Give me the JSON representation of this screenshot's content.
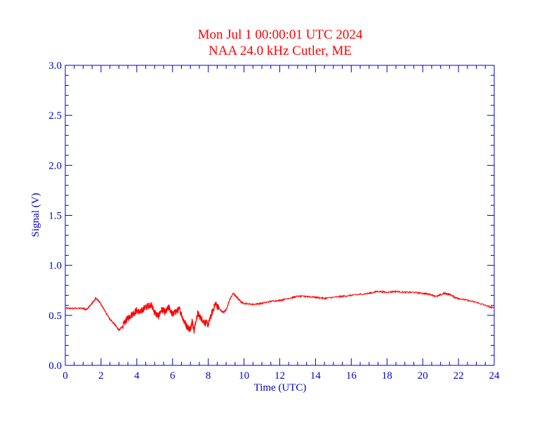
{
  "chart_data": {
    "type": "line",
    "title": "Mon Jul 1 00:00:01 UTC 2024",
    "subtitle": "NAA 24.0 kHz Cutler, ME",
    "xlabel": "Time (UTC)",
    "ylabel": "Signal (V)",
    "xlim": [
      0,
      24
    ],
    "ylim": [
      0,
      3.0
    ],
    "x_ticks": [
      0,
      2,
      4,
      6,
      8,
      10,
      12,
      14,
      16,
      18,
      20,
      22,
      24
    ],
    "x_tick_labels": [
      "0",
      "2",
      "4",
      "6",
      "8",
      "10",
      "12",
      "14",
      "16",
      "18",
      "20",
      "22",
      "24"
    ],
    "y_ticks": [
      0,
      0.5,
      1.0,
      1.5,
      2.0,
      2.5,
      3.0
    ],
    "y_tick_labels": [
      "0.0",
      "0.5",
      "1.0",
      "1.5",
      "2.0",
      "2.5",
      "3.0"
    ],
    "x_minor_step": 0.5,
    "y_minor_step": 0.1,
    "grid": false,
    "series": [
      {
        "color": "#ff0000",
        "x": [
          0,
          0.5,
          1.0,
          1.2,
          1.5,
          1.7,
          1.9,
          2.1,
          2.3,
          2.5,
          2.7,
          2.9,
          3.0,
          3.2,
          3.4,
          3.6,
          3.8,
          4.0,
          4.2,
          4.4,
          4.6,
          4.8,
          5.0,
          5.2,
          5.4,
          5.6,
          5.8,
          6.0,
          6.2,
          6.4,
          6.6,
          6.8,
          7.0,
          7.1,
          7.2,
          7.4,
          7.6,
          7.8,
          8.0,
          8.2,
          8.4,
          8.6,
          8.8,
          9.0,
          9.2,
          9.4,
          9.6,
          9.8,
          10.0,
          10.5,
          11.0,
          11.5,
          12.0,
          12.5,
          13.0,
          13.5,
          14.0,
          14.5,
          15.0,
          15.5,
          16.0,
          16.5,
          17.0,
          17.5,
          18.0,
          18.5,
          19.0,
          19.5,
          20.0,
          20.4,
          20.8,
          21.2,
          21.5,
          21.8,
          22.0,
          22.5,
          23.0,
          23.5,
          24.0
        ],
        "values": [
          0.57,
          0.57,
          0.57,
          0.56,
          0.62,
          0.67,
          0.64,
          0.58,
          0.52,
          0.46,
          0.42,
          0.38,
          0.35,
          0.39,
          0.45,
          0.49,
          0.52,
          0.55,
          0.53,
          0.57,
          0.59,
          0.61,
          0.53,
          0.49,
          0.56,
          0.53,
          0.58,
          0.51,
          0.54,
          0.56,
          0.46,
          0.39,
          0.36,
          0.45,
          0.34,
          0.52,
          0.47,
          0.43,
          0.41,
          0.52,
          0.62,
          0.57,
          0.53,
          0.55,
          0.66,
          0.72,
          0.68,
          0.64,
          0.62,
          0.61,
          0.62,
          0.64,
          0.65,
          0.67,
          0.69,
          0.69,
          0.68,
          0.67,
          0.68,
          0.69,
          0.7,
          0.71,
          0.72,
          0.74,
          0.73,
          0.74,
          0.73,
          0.73,
          0.72,
          0.71,
          0.69,
          0.72,
          0.71,
          0.68,
          0.67,
          0.65,
          0.63,
          0.6,
          0.57
        ]
      }
    ]
  }
}
